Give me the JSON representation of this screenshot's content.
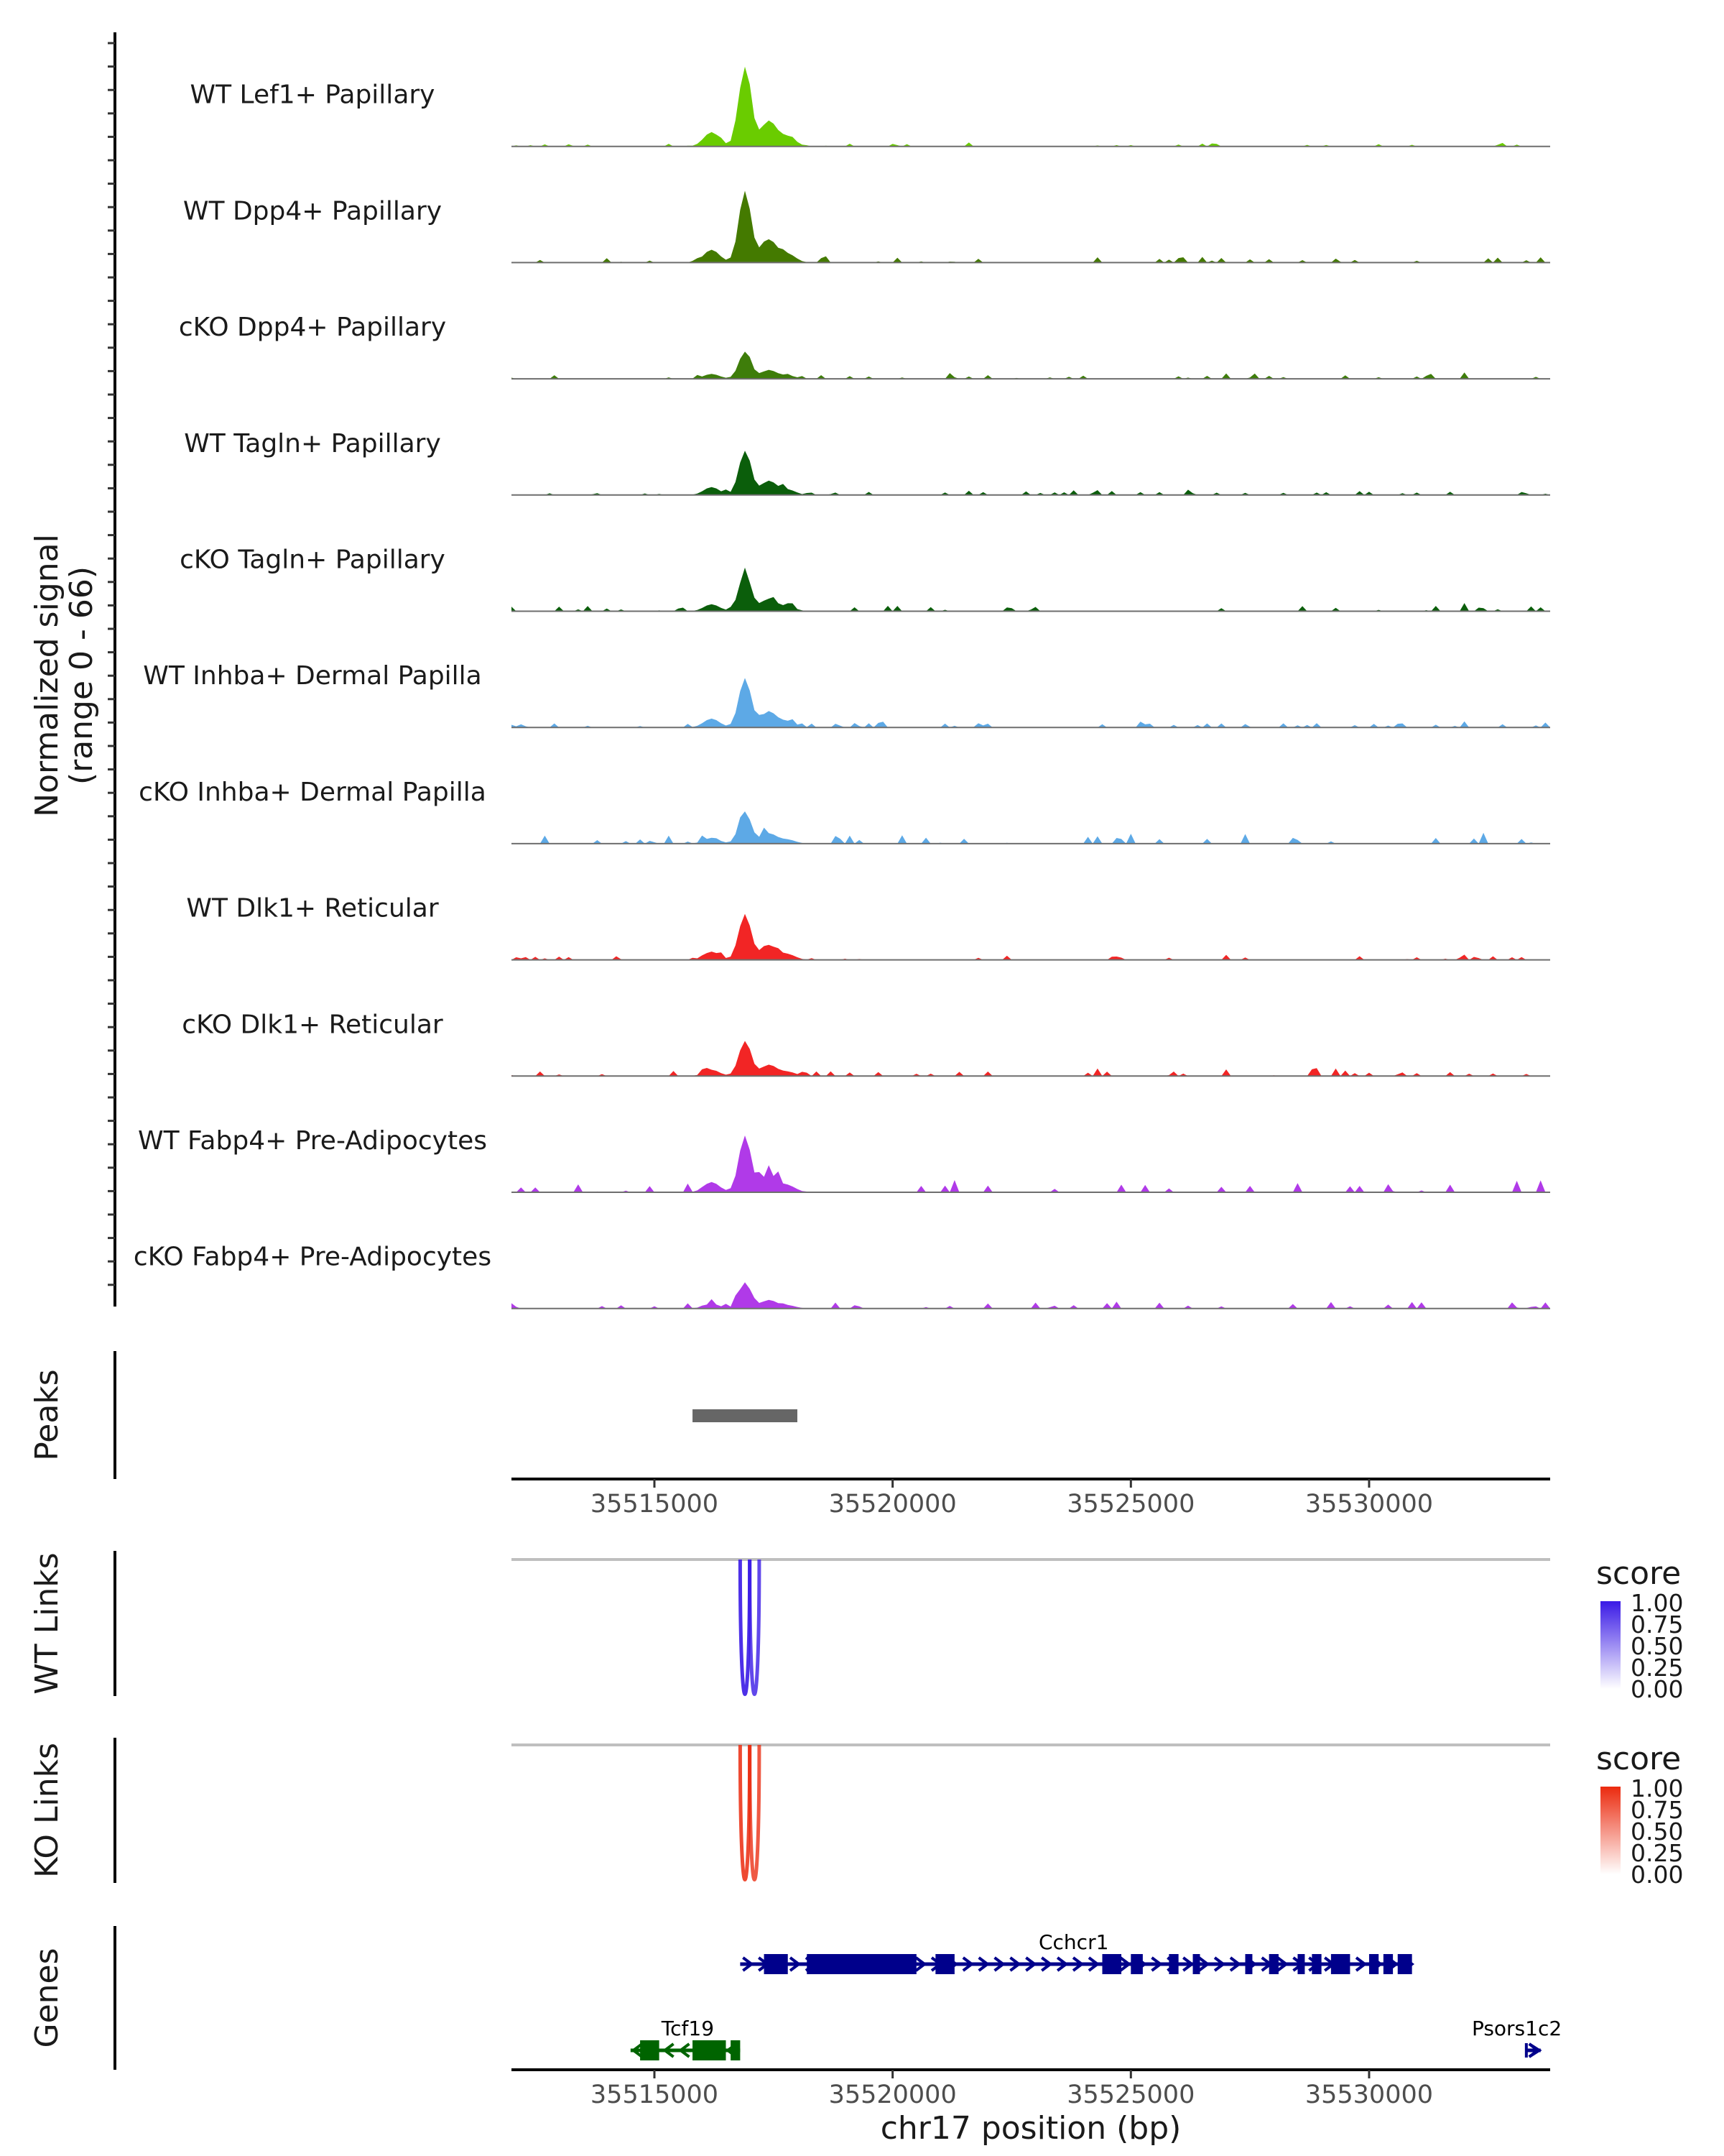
{
  "chart_data": {
    "type": "area",
    "title": "",
    "xlabel": "chr17 position (bp)",
    "xlim": [
      35512000,
      35533800
    ],
    "x_ticks": [
      35515000,
      35520000,
      35525000,
      35530000
    ],
    "x_tick_labels": [
      "35515000",
      "35520000",
      "35525000",
      "35530000"
    ],
    "coverage": {
      "ylabel_line1": "Normalized signal",
      "ylabel_line2": "(range 0 - 66)",
      "ylim": [
        0,
        66
      ],
      "bin_bp": 100,
      "tracks": [
        {
          "name": "WT Lef1+ Papillary",
          "color": "#6ACC00",
          "scale": 1.0,
          "peak_fraction": 0.79,
          "noise": 0.1,
          "seed": 3
        },
        {
          "name": "WT Dpp4+ Papillary",
          "color": "#447A00",
          "scale": 0.89,
          "peak_fraction": 0.8,
          "noise": 0.18,
          "seed": 7
        },
        {
          "name": "cKO Dpp4+ Papillary",
          "color": "#3E7D0A",
          "scale": 0.45,
          "peak_fraction": 0.6,
          "noise": 0.3,
          "seed": 11
        },
        {
          "name": "WT Tagln+ Papillary",
          "color": "#0B5E0B",
          "scale": 0.61,
          "peak_fraction": 0.72,
          "noise": 0.25,
          "seed": 17
        },
        {
          "name": "cKO Tagln+ Papillary",
          "color": "#0B5E0B",
          "scale": 0.64,
          "peak_fraction": 0.6,
          "noise": 0.3,
          "seed": 23
        },
        {
          "name": "WT Inhba+ Dermal Papilla",
          "color": "#5DA9E6",
          "scale": 0.7,
          "peak_fraction": 0.7,
          "noise": 0.22,
          "seed": 29
        },
        {
          "name": "cKO Inhba+ Dermal Papilla",
          "color": "#5DA9E6",
          "scale": 0.64,
          "peak_fraction": 0.5,
          "noise": 0.45,
          "seed": 31
        },
        {
          "name": "WT Dlk1+ Reticular",
          "color": "#F22525",
          "scale": 0.67,
          "peak_fraction": 0.68,
          "noise": 0.2,
          "seed": 37
        },
        {
          "name": "cKO Dlk1+ Reticular",
          "color": "#F22525",
          "scale": 0.58,
          "peak_fraction": 0.6,
          "noise": 0.35,
          "seed": 41
        },
        {
          "name": "WT Fabp4+ Pre-Adipocytes",
          "color": "#B03AE8",
          "scale": 0.97,
          "peak_fraction": 0.58,
          "noise": 0.35,
          "seed": 43
        },
        {
          "name": "cKO Fabp4+ Pre-Adipocytes",
          "color": "#B03AE8",
          "scale": 0.5,
          "peak_fraction": 0.52,
          "noise": 0.4,
          "seed": 47
        }
      ],
      "peak_profile": [
        {
          "pos": 35516200,
          "rel": 0.18
        },
        {
          "pos": 35516900,
          "rel": 1.0
        },
        {
          "pos": 35517400,
          "rel": 0.32
        },
        {
          "pos": 35517800,
          "rel": 0.12
        }
      ]
    },
    "peaks": {
      "label": "Peaks",
      "regions": [
        [
          35515800,
          35518000
        ]
      ],
      "color": "#666666"
    },
    "links": [
      {
        "label": "WT Links",
        "legend_title": "score",
        "color_high": "#3A1AE6",
        "color_low": "#FFFFFF",
        "legend_ticks": [
          "1.00",
          "0.75",
          "0.50",
          "0.25",
          "0.00"
        ],
        "arcs": [
          {
            "start": 35516800,
            "end": 35517000,
            "score": 0.9
          },
          {
            "start": 35517000,
            "end": 35517200,
            "score": 0.8
          }
        ]
      },
      {
        "label": "KO Links",
        "legend_title": "score",
        "color_high": "#EB2A0E",
        "color_low": "#FFFFFF",
        "legend_ticks": [
          "1.00",
          "0.75",
          "0.50",
          "0.25",
          "0.00"
        ],
        "arcs": [
          {
            "start": 35516800,
            "end": 35517000,
            "score": 0.85
          },
          {
            "start": 35517000,
            "end": 35517200,
            "score": 0.78
          }
        ]
      }
    ],
    "genes": {
      "label": "Genes",
      "items": [
        {
          "name": "Cchcr1",
          "strand": "+",
          "color": "#00008B",
          "start": 35516800,
          "end": 35530900,
          "exons": [
            [
              35517300,
              35517800
            ],
            [
              35518200,
              35520500
            ],
            [
              35520900,
              35521300
            ],
            [
              35524400,
              35524800
            ],
            [
              35525000,
              35525250
            ],
            [
              35525800,
              35526000
            ],
            [
              35526300,
              35526450
            ],
            [
              35527400,
              35527550
            ],
            [
              35527900,
              35528100
            ],
            [
              35528500,
              35528650
            ],
            [
              35528800,
              35529000
            ],
            [
              35529200,
              35529600
            ],
            [
              35530000,
              35530200
            ],
            [
              35530300,
              35530500
            ],
            [
              35530600,
              35530900
            ]
          ]
        },
        {
          "name": "Tcf19",
          "strand": "-",
          "color": "#006400",
          "start": 35514500,
          "end": 35516800,
          "exons": [
            [
              35514700,
              35515100
            ],
            [
              35515800,
              35516500
            ],
            [
              35516600,
              35516800
            ]
          ]
        },
        {
          "name": "Psors1c2",
          "strand": "+",
          "color": "#00008B",
          "start": 35533300,
          "end": 35533600,
          "exons": []
        }
      ]
    }
  }
}
